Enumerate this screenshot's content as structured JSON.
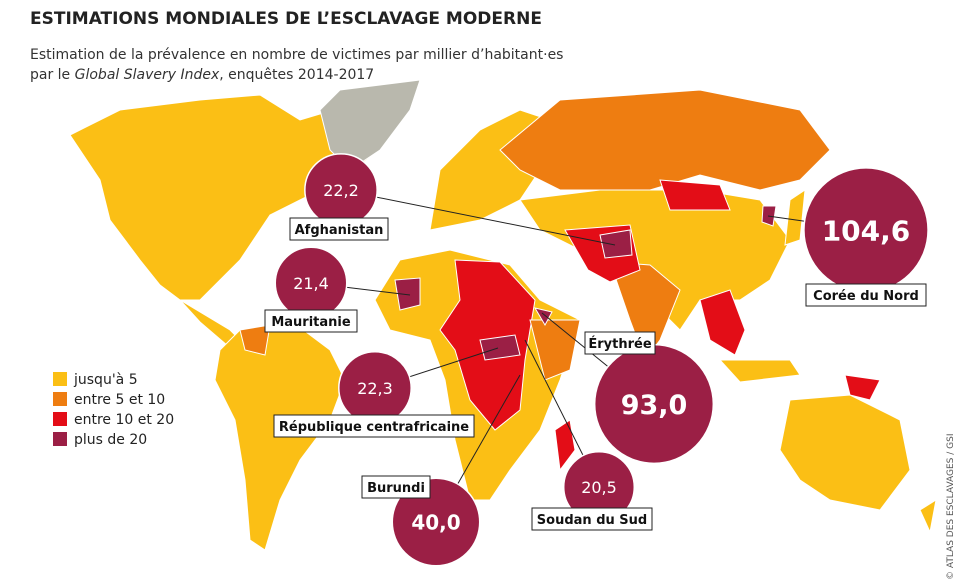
{
  "header": {
    "title": "ESTIMATIONS MONDIALES DE L’ESCLAVAGE MODERNE",
    "subtitle_line1": "Estimation de la prévalence en nombre de victimes par millier d’habitant·es",
    "subtitle_line2": [
      "par le ",
      "Global Slavery Index",
      ", enquêtes 2014-2017"
    ]
  },
  "legend": [
    {
      "label": "jusqu'à 5",
      "color": "#fbbf15"
    },
    {
      "label": "entre 5 et 10",
      "color": "#ee7d11"
    },
    {
      "label": "entre 10 et 20",
      "color": "#e30d17"
    },
    {
      "label": "plus de 20",
      "color": "#9b1f45"
    }
  ],
  "no_data_color": "#b9b8ad",
  "countries": [
    {
      "name": "Afghanistan",
      "value": 22.2,
      "value_label": "22,2"
    },
    {
      "name": "Mauritanie",
      "value": 21.4,
      "value_label": "21,4"
    },
    {
      "name": "République centrafricaine",
      "value": 22.3,
      "value_label": "22,3"
    },
    {
      "name": "Burundi",
      "value": 40.0,
      "value_label": "40,0"
    },
    {
      "name": "Soudan du Sud",
      "value": 20.5,
      "value_label": "20,5"
    },
    {
      "name": "Érythrée",
      "value": 93.0,
      "value_label": "93,0"
    },
    {
      "name": "Corée du Nord",
      "value": 104.6,
      "value_label": "104,6"
    }
  ],
  "credit": "© ATLAS DES ESCLAVAGES / GSI"
}
